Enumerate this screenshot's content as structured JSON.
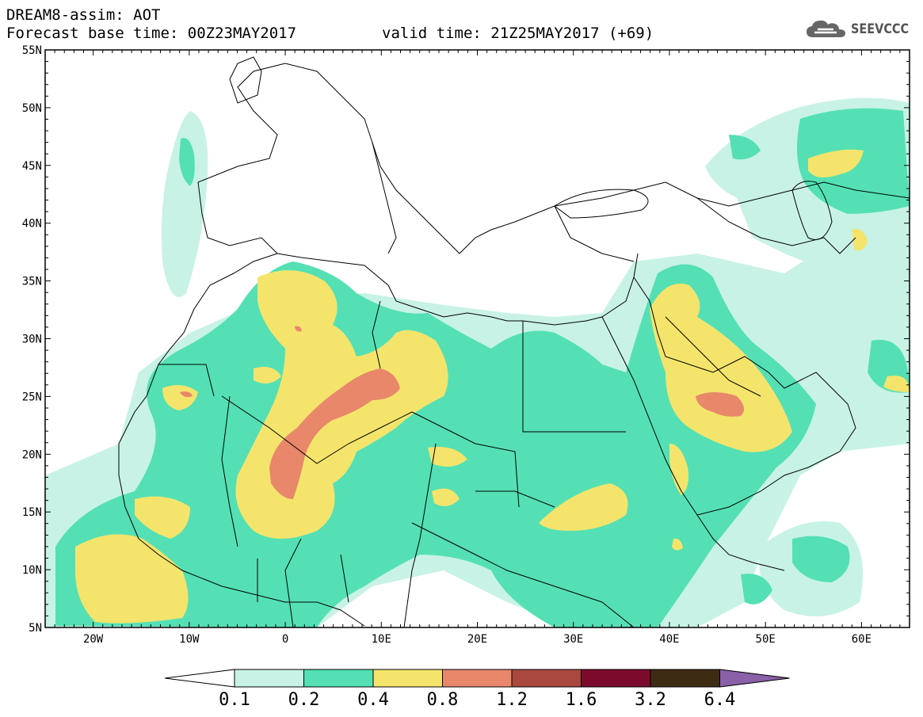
{
  "header": {
    "title": "DREAM8-assim: AOT",
    "base_time": "Forecast base time: 00Z23MAY2017",
    "valid_time": "valid time: 21Z25MAY2017 (+69)"
  },
  "logo": {
    "text": "SEEVCCC",
    "icon": "cloud-icon"
  },
  "axes": {
    "lat_labels": [
      "55N",
      "50N",
      "45N",
      "40N",
      "35N",
      "30N",
      "25N",
      "20N",
      "15N",
      "10N",
      "5N"
    ],
    "lon_labels": [
      "20W",
      "10W",
      "0",
      "10E",
      "20E",
      "30E",
      "40E",
      "50E",
      "60E"
    ]
  },
  "colorbar": {
    "levels": [
      "0.1",
      "0.2",
      "0.4",
      "0.8",
      "1.2",
      "1.6",
      "3.2",
      "6.4"
    ],
    "colors": [
      "#c8f2e6",
      "#54e0b4",
      "#f4e46c",
      "#e8876a",
      "#a8483e",
      "#7c0a2c",
      "#3e2b14",
      "#8a60a8"
    ],
    "below_color": "#ffffff"
  },
  "map": {
    "lon_range": [
      -25,
      65
    ],
    "lat_range": [
      5,
      55
    ],
    "projection": "lat-lon"
  }
}
